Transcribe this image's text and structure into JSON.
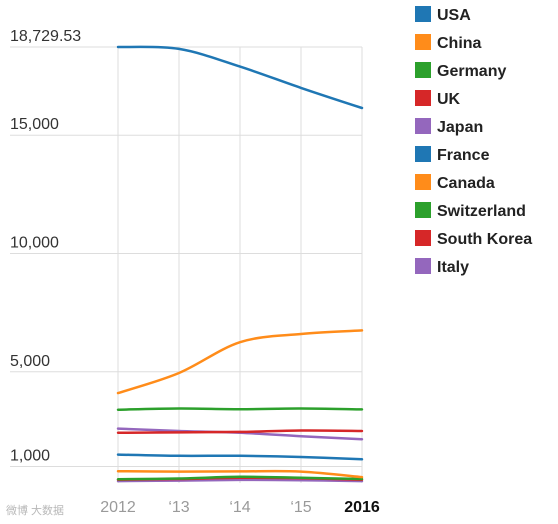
{
  "chart_data": {
    "type": "line",
    "title": "",
    "xlabel": "",
    "ylabel": "",
    "x": [
      2012,
      2013,
      2014,
      2015,
      2016
    ],
    "x_tick_labels": [
      "2012",
      "‘13",
      "‘14",
      "‘15",
      "2016"
    ],
    "y_tick_labels": [
      "18,729.53",
      "15,000",
      "10,000",
      "5,000",
      "1,000"
    ],
    "y_tick_values": [
      18729.53,
      15000,
      10000,
      5000,
      1000
    ],
    "ylim": [
      300,
      18729.53
    ],
    "grid": "vertical",
    "legend_position": "right",
    "series": [
      {
        "name": "USA",
        "color": "#1f77b4",
        "values": [
          18729.53,
          18650,
          17900,
          17000,
          16150
        ]
      },
      {
        "name": "China",
        "color": "#ff8c1a",
        "values": [
          4100,
          4950,
          6250,
          6600,
          6750
        ]
      },
      {
        "name": "Germany",
        "color": "#2ca02c",
        "values": [
          3400,
          3450,
          3420,
          3450,
          3410
        ]
      },
      {
        "name": "UK",
        "color": "#d62728",
        "values": [
          2420,
          2440,
          2460,
          2520,
          2500
        ]
      },
      {
        "name": "Japan",
        "color": "#9467bd",
        "values": [
          2600,
          2500,
          2420,
          2280,
          2150
        ]
      },
      {
        "name": "France",
        "color": "#1f77b4",
        "values": [
          1500,
          1450,
          1450,
          1400,
          1300
        ]
      },
      {
        "name": "Canada",
        "color": "#ff8c1a",
        "values": [
          800,
          780,
          790,
          780,
          550
        ]
      },
      {
        "name": "Switzerland",
        "color": "#2ca02c",
        "values": [
          460,
          490,
          560,
          520,
          470
        ]
      },
      {
        "name": "South Korea",
        "color": "#d62728",
        "values": [
          440,
          470,
          520,
          500,
          440
        ]
      },
      {
        "name": "Italy",
        "color": "#9467bd",
        "values": [
          380,
          400,
          430,
          420,
          380
        ]
      }
    ]
  },
  "watermark": "微博 大数据"
}
